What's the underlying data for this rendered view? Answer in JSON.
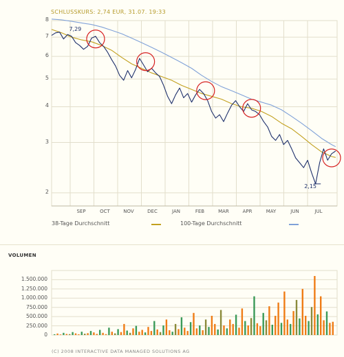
{
  "header": {
    "text": "SCHLUSSKURS: 2,74 EUR, 31.07. 19:33"
  },
  "colors": {
    "price_line": "#1d2f6b",
    "ma38": "#c2a01e",
    "ma100": "#7fa1d8",
    "highlight_circle": "#d62020",
    "grid": "#e2decb",
    "vol_orange": "#ef7c16",
    "vol_green": "#3b9a59",
    "background": "#fffef6"
  },
  "legend": {
    "ma38_label": "38-Tage Durchschnitt",
    "ma100_label": "100-Tage Durchschnitt"
  },
  "volume": {
    "title": "VOLUMEN",
    "tick_labels": [
      "1.500.000",
      "1.250.000",
      "1.000.000",
      "750.000",
      "500.000",
      "250.000",
      "0"
    ]
  },
  "footer": {
    "text": "(C) 2008 INTERACTIVE DATA MANAGED SOLUTIONS AG"
  },
  "chart_data": [
    {
      "type": "line",
      "title": "SCHLUSSKURS: 2,74 EUR, 31.07. 19:33",
      "scale": "log",
      "ylim": [
        1.8,
        8
      ],
      "xlim": [
        0,
        14
      ],
      "y_tick_labels": [
        "8",
        "7",
        "6",
        "5",
        "4",
        "3",
        "2"
      ],
      "x_tick_labels": [
        "SEP",
        "OCT",
        "NOV",
        "DEC",
        "JAN",
        "FEB",
        "MAR",
        "APR",
        "MAY",
        "JUN",
        "JUL"
      ],
      "annotations": [
        {
          "text": "7,29",
          "x": 0.6,
          "y": 7.29
        },
        {
          "text": "2,15",
          "x": 13.25,
          "y": 2.15
        }
      ],
      "highlight_circles": [
        {
          "x": 2.2,
          "y": 6.9
        },
        {
          "x": 4.7,
          "y": 5.75
        },
        {
          "x": 7.7,
          "y": 4.55
        },
        {
          "x": 10.0,
          "y": 3.95
        },
        {
          "x": 14.0,
          "y": 2.65
        }
      ],
      "series": [
        {
          "name": "Schlusskurs",
          "x": [
            0.0,
            0.2,
            0.4,
            0.6,
            0.8,
            1.0,
            1.2,
            1.4,
            1.6,
            1.8,
            2.0,
            2.2,
            2.4,
            2.6,
            2.8,
            3.0,
            3.2,
            3.4,
            3.6,
            3.8,
            4.0,
            4.2,
            4.4,
            4.6,
            4.8,
            5.0,
            5.2,
            5.4,
            5.6,
            5.8,
            6.0,
            6.2,
            6.4,
            6.6,
            6.8,
            7.0,
            7.2,
            7.4,
            7.6,
            7.8,
            8.0,
            8.2,
            8.4,
            8.6,
            8.8,
            9.0,
            9.2,
            9.4,
            9.6,
            9.8,
            10.0,
            10.2,
            10.4,
            10.6,
            10.8,
            11.0,
            11.2,
            11.4,
            11.6,
            11.8,
            12.0,
            12.2,
            12.4,
            12.6,
            12.8,
            13.0,
            13.2,
            13.4,
            13.6,
            13.8,
            14.0,
            14.2
          ],
          "values": [
            7.1,
            7.25,
            7.29,
            6.9,
            7.15,
            7.05,
            6.7,
            6.55,
            6.35,
            6.5,
            6.95,
            7.05,
            6.7,
            6.5,
            6.2,
            5.85,
            5.55,
            5.15,
            4.95,
            5.35,
            5.05,
            5.4,
            5.9,
            5.6,
            5.3,
            5.45,
            5.25,
            5.1,
            4.75,
            4.35,
            4.1,
            4.4,
            4.65,
            4.3,
            4.45,
            4.15,
            4.4,
            4.6,
            4.45,
            4.2,
            3.85,
            3.65,
            3.75,
            3.55,
            3.8,
            4.05,
            4.2,
            4.0,
            3.85,
            4.1,
            3.9,
            3.85,
            3.75,
            3.55,
            3.4,
            3.15,
            3.05,
            3.2,
            2.95,
            3.05,
            2.85,
            2.65,
            2.55,
            2.45,
            2.6,
            2.35,
            2.15,
            2.55,
            2.85,
            2.6,
            2.74,
            2.8
          ]
        },
        {
          "name": "38-Tage Durchschnitt",
          "x": [
            0.0,
            0.5,
            1.0,
            1.5,
            2.0,
            2.5,
            3.0,
            3.5,
            4.0,
            4.5,
            5.0,
            5.5,
            6.0,
            6.5,
            7.0,
            7.5,
            8.0,
            8.5,
            9.0,
            9.5,
            10.0,
            10.5,
            11.0,
            11.5,
            12.0,
            12.5,
            13.0,
            13.5,
            14.0,
            14.2
          ],
          "values": [
            7.45,
            7.25,
            7.0,
            6.85,
            6.75,
            6.55,
            6.3,
            5.95,
            5.65,
            5.45,
            5.25,
            5.1,
            4.95,
            4.75,
            4.6,
            4.45,
            4.35,
            4.25,
            4.1,
            4.0,
            3.95,
            3.85,
            3.7,
            3.5,
            3.35,
            3.15,
            2.95,
            2.78,
            2.68,
            2.66
          ]
        },
        {
          "name": "100-Tage Durchschnitt",
          "x": [
            0.0,
            0.5,
            1.0,
            1.5,
            2.0,
            2.5,
            3.0,
            3.5,
            4.0,
            4.5,
            5.0,
            5.5,
            6.0,
            6.5,
            7.0,
            7.5,
            8.0,
            8.5,
            9.0,
            9.5,
            10.0,
            10.5,
            11.0,
            11.5,
            12.0,
            12.5,
            13.0,
            13.5,
            14.0,
            14.2
          ],
          "values": [
            8.1,
            8.05,
            7.95,
            7.85,
            7.75,
            7.6,
            7.4,
            7.2,
            6.95,
            6.7,
            6.45,
            6.2,
            5.95,
            5.7,
            5.45,
            5.15,
            4.9,
            4.7,
            4.55,
            4.4,
            4.25,
            4.15,
            4.05,
            3.9,
            3.7,
            3.5,
            3.3,
            3.1,
            2.95,
            2.9
          ]
        }
      ]
    },
    {
      "type": "bar",
      "title": "VOLUMEN",
      "ylim": [
        0,
        1600000
      ],
      "y_tick_labels": [
        "0",
        "250.000",
        "500.000",
        "750.000",
        "1.000.000",
        "1.250.000",
        "1.500.000"
      ],
      "series": [
        {
          "name": "Volumen",
          "values": [
            20000,
            40000,
            15000,
            60000,
            30000,
            25000,
            80000,
            45000,
            20000,
            90000,
            35000,
            50000,
            110000,
            70000,
            30000,
            140000,
            60000,
            25000,
            200000,
            90000,
            45000,
            160000,
            80000,
            300000,
            120000,
            60000,
            180000,
            250000,
            90000,
            140000,
            70000,
            220000,
            110000,
            380000,
            150000,
            80000,
            260000,
            420000,
            130000,
            90000,
            300000,
            160000,
            480000,
            200000,
            110000,
            350000,
            600000,
            180000,
            260000,
            130000,
            420000,
            220000,
            520000,
            300000,
            150000,
            680000,
            260000,
            180000,
            420000,
            300000,
            550000,
            200000,
            720000,
            380000,
            260000,
            460000,
            1050000,
            320000,
            240000,
            600000,
            400000,
            780000,
            280000,
            520000,
            880000,
            330000,
            1180000,
            420000,
            300000,
            650000,
            950000,
            450000,
            1250000,
            520000,
            380000,
            760000,
            1600000,
            560000,
            1050000,
            400000,
            640000,
            330000,
            360000
          ]
        }
      ]
    }
  ]
}
